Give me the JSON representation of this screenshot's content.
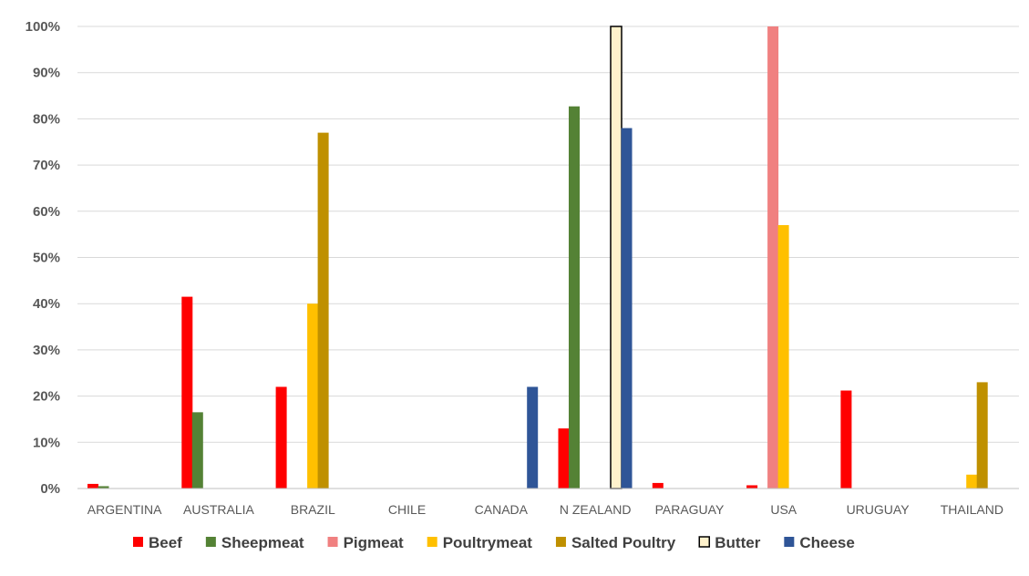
{
  "chart_data": {
    "type": "bar",
    "title": "",
    "xlabel": "",
    "ylabel": "",
    "ylim": [
      0,
      100
    ],
    "y_ticks": [
      0,
      10,
      20,
      30,
      40,
      50,
      60,
      70,
      80,
      90,
      100
    ],
    "y_tick_format": "{v}%",
    "grid": true,
    "legend_position": "bottom",
    "categories": [
      "ARGENTINA",
      "AUSTRALIA",
      "BRAZIL",
      "CHILE",
      "CANADA",
      "N ZEALAND",
      "PARAGUAY",
      "USA",
      "URUGUAY",
      "THAILAND"
    ],
    "series": [
      {
        "name": "Beef",
        "color": "#ff0000",
        "values": [
          1,
          41.5,
          22,
          0,
          0,
          13,
          1.2,
          0.7,
          21.2,
          0
        ]
      },
      {
        "name": "Sheepmeat",
        "color": "#548235",
        "values": [
          0.5,
          16.5,
          0,
          0,
          0,
          82.7,
          0,
          0,
          0,
          0
        ]
      },
      {
        "name": "Pigmeat",
        "color": "#f08080",
        "values": [
          0,
          0,
          0,
          0,
          0,
          0,
          0,
          100,
          0,
          0
        ]
      },
      {
        "name": "Poultrymeat",
        "color": "#ffc000",
        "values": [
          0,
          0,
          40,
          0,
          0,
          0,
          0,
          57,
          0,
          3
        ]
      },
      {
        "name": "Salted Poultry",
        "color": "#bf9000",
        "values": [
          0,
          0,
          77,
          0,
          0,
          0,
          0,
          0,
          0,
          23
        ]
      },
      {
        "name": "Butter",
        "color": "#fff2cc",
        "stroke": "#000000",
        "values": [
          0,
          0,
          0,
          0,
          0,
          100,
          0,
          0,
          0,
          0
        ]
      },
      {
        "name": "Cheese",
        "color": "#2f5597",
        "values": [
          0,
          0,
          0,
          0,
          22,
          78,
          0,
          0,
          0,
          0
        ]
      }
    ]
  }
}
